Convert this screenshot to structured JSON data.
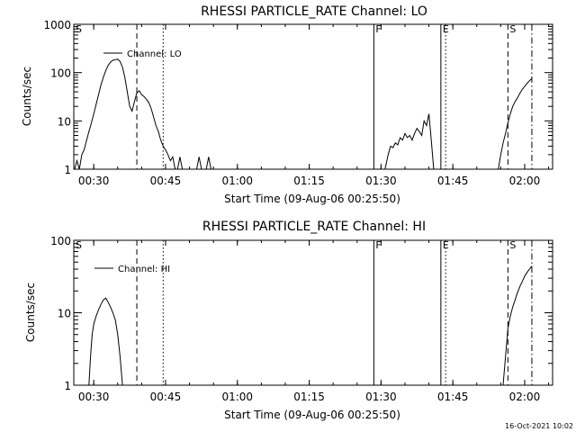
{
  "footer_timestamp": "16-Oct-2021 10:02",
  "chart_data": [
    {
      "type": "line",
      "title": "RHESSI PARTICLE_RATE Channel: LO",
      "xlabel": "Start Time (09-Aug-06 00:25:50)",
      "ylabel": "Counts/sec",
      "xlim": [
        "00:25:50",
        "02:05:50"
      ],
      "ylim": [
        1,
        1000
      ],
      "yscale": "log",
      "grid": false,
      "x_ticks": [
        "00:30",
        "00:45",
        "01:00",
        "01:15",
        "01:30",
        "01:45",
        "02:00"
      ],
      "y_ticks": [
        "1",
        "10",
        "100",
        "1000"
      ],
      "legend": {
        "entries": [
          "Channel: LO"
        ],
        "placement": "top-left"
      },
      "markers": [
        {
          "label": "S",
          "time": "00:25:50",
          "style": "solid"
        },
        {
          "label": "",
          "time": "00:39:00",
          "style": "dashed"
        },
        {
          "label": "",
          "time": "00:44:30",
          "style": "dotted"
        },
        {
          "label": "F",
          "time": "01:28:30",
          "style": "solid"
        },
        {
          "label": "E",
          "time": "01:42:30",
          "style": "solid"
        },
        {
          "label": "",
          "time": "01:43:30",
          "style": "dotted"
        },
        {
          "label": "S",
          "time": "01:56:30",
          "style": "dashed"
        },
        {
          "label": "",
          "time": "02:01:30",
          "style": "dashdot"
        }
      ],
      "series": [
        {
          "name": "Channel: LO",
          "segments": [
            [
              [
                "00:26:00",
                1
              ],
              [
                "00:26:30",
                1.5
              ],
              [
                "00:27:00",
                1
              ],
              [
                "00:27:30",
                2
              ],
              [
                "00:28:00",
                2.5
              ],
              [
                "00:28:30",
                4
              ],
              [
                "00:29:00",
                6
              ],
              [
                "00:29:30",
                9
              ],
              [
                "00:30:00",
                14
              ],
              [
                "00:30:30",
                22
              ],
              [
                "00:31:00",
                35
              ],
              [
                "00:31:30",
                55
              ],
              [
                "00:32:00",
                80
              ],
              [
                "00:32:30",
                110
              ],
              [
                "00:33:00",
                140
              ],
              [
                "00:33:30",
                165
              ],
              [
                "00:34:00",
                180
              ],
              [
                "00:34:30",
                185
              ],
              [
                "00:35:00",
                190
              ],
              [
                "00:35:30",
                170
              ],
              [
                "00:36:00",
                130
              ],
              [
                "00:36:30",
                80
              ],
              [
                "00:37:00",
                40
              ],
              [
                "00:37:30",
                20
              ],
              [
                "00:38:00",
                16
              ],
              [
                "00:38:30",
                25
              ],
              [
                "00:39:00",
                38
              ],
              [
                "00:39:30",
                42
              ],
              [
                "00:40:00",
                35
              ],
              [
                "00:40:30",
                32
              ],
              [
                "00:41:00",
                28
              ],
              [
                "00:41:30",
                24
              ],
              [
                "00:42:00",
                18
              ],
              [
                "00:42:30",
                12
              ],
              [
                "00:43:00",
                8
              ],
              [
                "00:43:30",
                6
              ],
              [
                "00:44:00",
                4
              ],
              [
                "00:44:30",
                3
              ],
              [
                "00:45:00",
                2.5
              ],
              [
                "00:45:30",
                2
              ],
              [
                "00:46:00",
                1.5
              ],
              [
                "00:46:30",
                1.8
              ],
              [
                "00:47:00",
                1
              ]
            ],
            [
              [
                "00:47:30",
                1
              ],
              [
                "00:48:00",
                1.8
              ],
              [
                "00:48:30",
                1
              ]
            ],
            [
              [
                "00:51:30",
                1
              ],
              [
                "00:52:00",
                1.8
              ],
              [
                "00:52:30",
                1
              ]
            ],
            [
              [
                "00:53:30",
                1
              ],
              [
                "00:54:00",
                1.8
              ],
              [
                "00:54:30",
                1
              ]
            ],
            [
              [
                "01:30:50",
                1
              ],
              [
                "01:31:30",
                2
              ],
              [
                "01:32:00",
                3
              ],
              [
                "01:32:30",
                2.8
              ],
              [
                "01:33:00",
                3.5
              ],
              [
                "01:33:30",
                3.2
              ],
              [
                "01:34:00",
                4.5
              ],
              [
                "01:34:30",
                4
              ],
              [
                "01:35:00",
                5.5
              ],
              [
                "01:35:30",
                4.5
              ],
              [
                "01:36:00",
                5
              ],
              [
                "01:36:30",
                4
              ],
              [
                "01:37:00",
                5.5
              ],
              [
                "01:37:30",
                7
              ],
              [
                "01:38:00",
                6
              ],
              [
                "01:38:30",
                5
              ],
              [
                "01:39:00",
                10
              ],
              [
                "01:39:30",
                8
              ],
              [
                "01:40:00",
                14
              ],
              [
                "01:40:30",
                4
              ],
              [
                "01:41:00",
                1
              ]
            ],
            [
              [
                "01:54:30",
                1
              ],
              [
                "01:55:00",
                2
              ],
              [
                "01:55:30",
                3.5
              ],
              [
                "01:56:00",
                5.5
              ],
              [
                "01:56:30",
                9
              ],
              [
                "01:57:00",
                14
              ],
              [
                "01:57:30",
                20
              ],
              [
                "01:58:00",
                25
              ],
              [
                "01:58:30",
                30
              ],
              [
                "01:59:00",
                37
              ],
              [
                "01:59:30",
                45
              ],
              [
                "02:00:00",
                52
              ],
              [
                "02:00:30",
                60
              ],
              [
                "02:01:00",
                68
              ],
              [
                "02:01:30",
                75
              ]
            ]
          ]
        }
      ]
    },
    {
      "type": "line",
      "title": "RHESSI PARTICLE_RATE Channel: HI",
      "xlabel": "Start Time (09-Aug-06 00:25:50)",
      "ylabel": "Counts/sec",
      "xlim": [
        "00:25:50",
        "02:05:50"
      ],
      "ylim": [
        1,
        100
      ],
      "yscale": "log",
      "grid": false,
      "x_ticks": [
        "00:30",
        "00:45",
        "01:00",
        "01:15",
        "01:30",
        "01:45",
        "02:00"
      ],
      "y_ticks": [
        "1",
        "10",
        "100"
      ],
      "legend": {
        "entries": [
          "Channel: HI"
        ],
        "placement": "top-left"
      },
      "markers": [
        {
          "label": "S",
          "time": "00:25:50",
          "style": "solid"
        },
        {
          "label": "",
          "time": "00:39:00",
          "style": "dashed"
        },
        {
          "label": "",
          "time": "00:44:30",
          "style": "dotted"
        },
        {
          "label": "F",
          "time": "01:28:30",
          "style": "solid"
        },
        {
          "label": "E",
          "time": "01:42:30",
          "style": "solid"
        },
        {
          "label": "",
          "time": "01:43:30",
          "style": "dotted"
        },
        {
          "label": "S",
          "time": "01:56:30",
          "style": "dashed"
        },
        {
          "label": "",
          "time": "02:01:30",
          "style": "dashdot"
        }
      ],
      "series": [
        {
          "name": "Channel: HI",
          "segments": [
            [
              [
                "00:29:00",
                1
              ],
              [
                "00:29:20",
                2.5
              ],
              [
                "00:29:40",
                5
              ],
              [
                "00:30:00",
                7
              ],
              [
                "00:30:30",
                9
              ],
              [
                "00:31:00",
                11
              ],
              [
                "00:31:30",
                13
              ],
              [
                "00:32:00",
                15
              ],
              [
                "00:32:30",
                16
              ],
              [
                "00:33:00",
                14
              ],
              [
                "00:33:30",
                12
              ],
              [
                "00:34:00",
                10
              ],
              [
                "00:34:30",
                8
              ],
              [
                "00:35:00",
                5
              ],
              [
                "00:35:30",
                2.5
              ],
              [
                "00:36:00",
                1
              ]
            ],
            [
              [
                "01:55:30",
                1
              ],
              [
                "01:56:00",
                2.5
              ],
              [
                "01:56:30",
                6
              ],
              [
                "01:57:00",
                9
              ],
              [
                "01:57:30",
                12
              ],
              [
                "01:58:00",
                15
              ],
              [
                "01:58:30",
                19
              ],
              [
                "01:59:00",
                23
              ],
              [
                "01:59:30",
                27
              ],
              [
                "02:00:00",
                32
              ],
              [
                "02:00:30",
                36
              ],
              [
                "02:01:00",
                40
              ],
              [
                "02:01:30",
                44
              ]
            ]
          ]
        }
      ]
    }
  ]
}
